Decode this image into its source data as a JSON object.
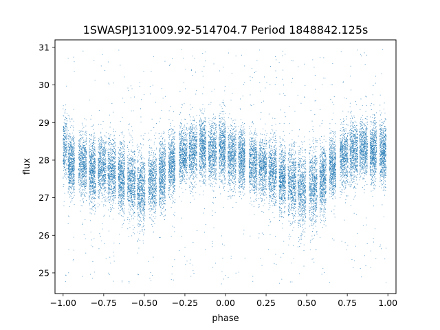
{
  "chart_data": {
    "type": "scatter",
    "title": "1SWASPJ131009.92-514704.7 Period 1848842.125s",
    "xlabel": "phase",
    "ylabel": "flux",
    "xlim": [
      -1.05,
      1.05
    ],
    "ylim": [
      24.45,
      31.2
    ],
    "x_ticks": [
      -1.0,
      -0.75,
      -0.5,
      -0.25,
      0.0,
      0.25,
      0.5,
      0.75,
      1.0
    ],
    "x_tick_labels": [
      "−1.00",
      "−0.75",
      "−0.50",
      "−0.25",
      "0.00",
      "0.25",
      "0.50",
      "0.75",
      "1.00"
    ],
    "y_ticks": [
      25,
      26,
      27,
      28,
      29,
      30,
      31
    ],
    "y_tick_labels": [
      "25",
      "26",
      "27",
      "28",
      "29",
      "30",
      "31"
    ],
    "grid": false,
    "marker_color": "#1f77b4",
    "points_per_block": 650,
    "trend": [
      {
        "phase": -1.0,
        "flux": 28.2
      },
      {
        "phase": -0.9,
        "flux": 28.0
      },
      {
        "phase": -0.75,
        "flux": 27.8
      },
      {
        "phase": -0.6,
        "flux": 27.6
      },
      {
        "phase": -0.5,
        "flux": 27.3
      },
      {
        "phase": -0.4,
        "flux": 27.5
      },
      {
        "phase": -0.3,
        "flux": 27.9
      },
      {
        "phase": -0.2,
        "flux": 28.2
      },
      {
        "phase": -0.1,
        "flux": 28.3
      },
      {
        "phase": 0.0,
        "flux": 28.2
      },
      {
        "phase": 0.1,
        "flux": 28.0
      },
      {
        "phase": 0.25,
        "flux": 27.8
      },
      {
        "phase": 0.4,
        "flux": 27.6
      },
      {
        "phase": 0.5,
        "flux": 27.3
      },
      {
        "phase": 0.6,
        "flux": 27.5
      },
      {
        "phase": 0.7,
        "flux": 27.9
      },
      {
        "phase": 0.8,
        "flux": 28.2
      },
      {
        "phase": 0.9,
        "flux": 28.3
      },
      {
        "phase": 1.0,
        "flux": 28.2
      }
    ],
    "series": [
      {
        "blocks": [
          {
            "x": -1.0,
            "w": 0.05,
            "y": 28.3,
            "sd": 0.45
          },
          {
            "x": -0.95,
            "w": 0.04,
            "y": 27.9,
            "sd": 0.4
          },
          {
            "x": -0.88,
            "w": 0.05,
            "y": 27.9,
            "sd": 0.4
          },
          {
            "x": -0.82,
            "w": 0.04,
            "y": 27.7,
            "sd": 0.45
          },
          {
            "x": -0.76,
            "w": 0.05,
            "y": 27.8,
            "sd": 0.4
          },
          {
            "x": -0.7,
            "w": 0.05,
            "y": 27.7,
            "sd": 0.4
          },
          {
            "x": -0.64,
            "w": 0.04,
            "y": 27.5,
            "sd": 0.45
          },
          {
            "x": -0.58,
            "w": 0.05,
            "y": 27.4,
            "sd": 0.45
          },
          {
            "x": -0.52,
            "w": 0.05,
            "y": 27.2,
            "sd": 0.5
          },
          {
            "x": -0.45,
            "w": 0.05,
            "y": 27.4,
            "sd": 0.45
          },
          {
            "x": -0.39,
            "w": 0.04,
            "y": 27.6,
            "sd": 0.45
          },
          {
            "x": -0.33,
            "w": 0.04,
            "y": 27.9,
            "sd": 0.4
          },
          {
            "x": -0.26,
            "w": 0.05,
            "y": 28.1,
            "sd": 0.4
          },
          {
            "x": -0.2,
            "w": 0.05,
            "y": 28.2,
            "sd": 0.4
          },
          {
            "x": -0.14,
            "w": 0.04,
            "y": 28.3,
            "sd": 0.4
          },
          {
            "x": -0.08,
            "w": 0.05,
            "y": 28.2,
            "sd": 0.4
          },
          {
            "x": -0.02,
            "w": 0.04,
            "y": 28.3,
            "sd": 0.45
          },
          {
            "x": 0.04,
            "w": 0.05,
            "y": 28.1,
            "sd": 0.4
          },
          {
            "x": 0.1,
            "w": 0.04,
            "y": 28.0,
            "sd": 0.4
          },
          {
            "x": 0.17,
            "w": 0.05,
            "y": 27.9,
            "sd": 0.4
          },
          {
            "x": 0.23,
            "w": 0.05,
            "y": 27.8,
            "sd": 0.4
          },
          {
            "x": 0.29,
            "w": 0.05,
            "y": 27.7,
            "sd": 0.45
          },
          {
            "x": 0.35,
            "w": 0.04,
            "y": 27.5,
            "sd": 0.45
          },
          {
            "x": 0.41,
            "w": 0.05,
            "y": 27.4,
            "sd": 0.45
          },
          {
            "x": 0.47,
            "w": 0.05,
            "y": 27.2,
            "sd": 0.5
          },
          {
            "x": 0.54,
            "w": 0.05,
            "y": 27.3,
            "sd": 0.5
          },
          {
            "x": 0.6,
            "w": 0.04,
            "y": 27.5,
            "sd": 0.45
          },
          {
            "x": 0.66,
            "w": 0.04,
            "y": 27.8,
            "sd": 0.4
          },
          {
            "x": 0.73,
            "w": 0.05,
            "y": 28.1,
            "sd": 0.4
          },
          {
            "x": 0.79,
            "w": 0.05,
            "y": 28.2,
            "sd": 0.4
          },
          {
            "x": 0.85,
            "w": 0.05,
            "y": 28.3,
            "sd": 0.4
          },
          {
            "x": 0.91,
            "w": 0.04,
            "y": 28.2,
            "sd": 0.4
          },
          {
            "x": 0.97,
            "w": 0.04,
            "y": 28.2,
            "sd": 0.45
          }
        ]
      }
    ]
  }
}
